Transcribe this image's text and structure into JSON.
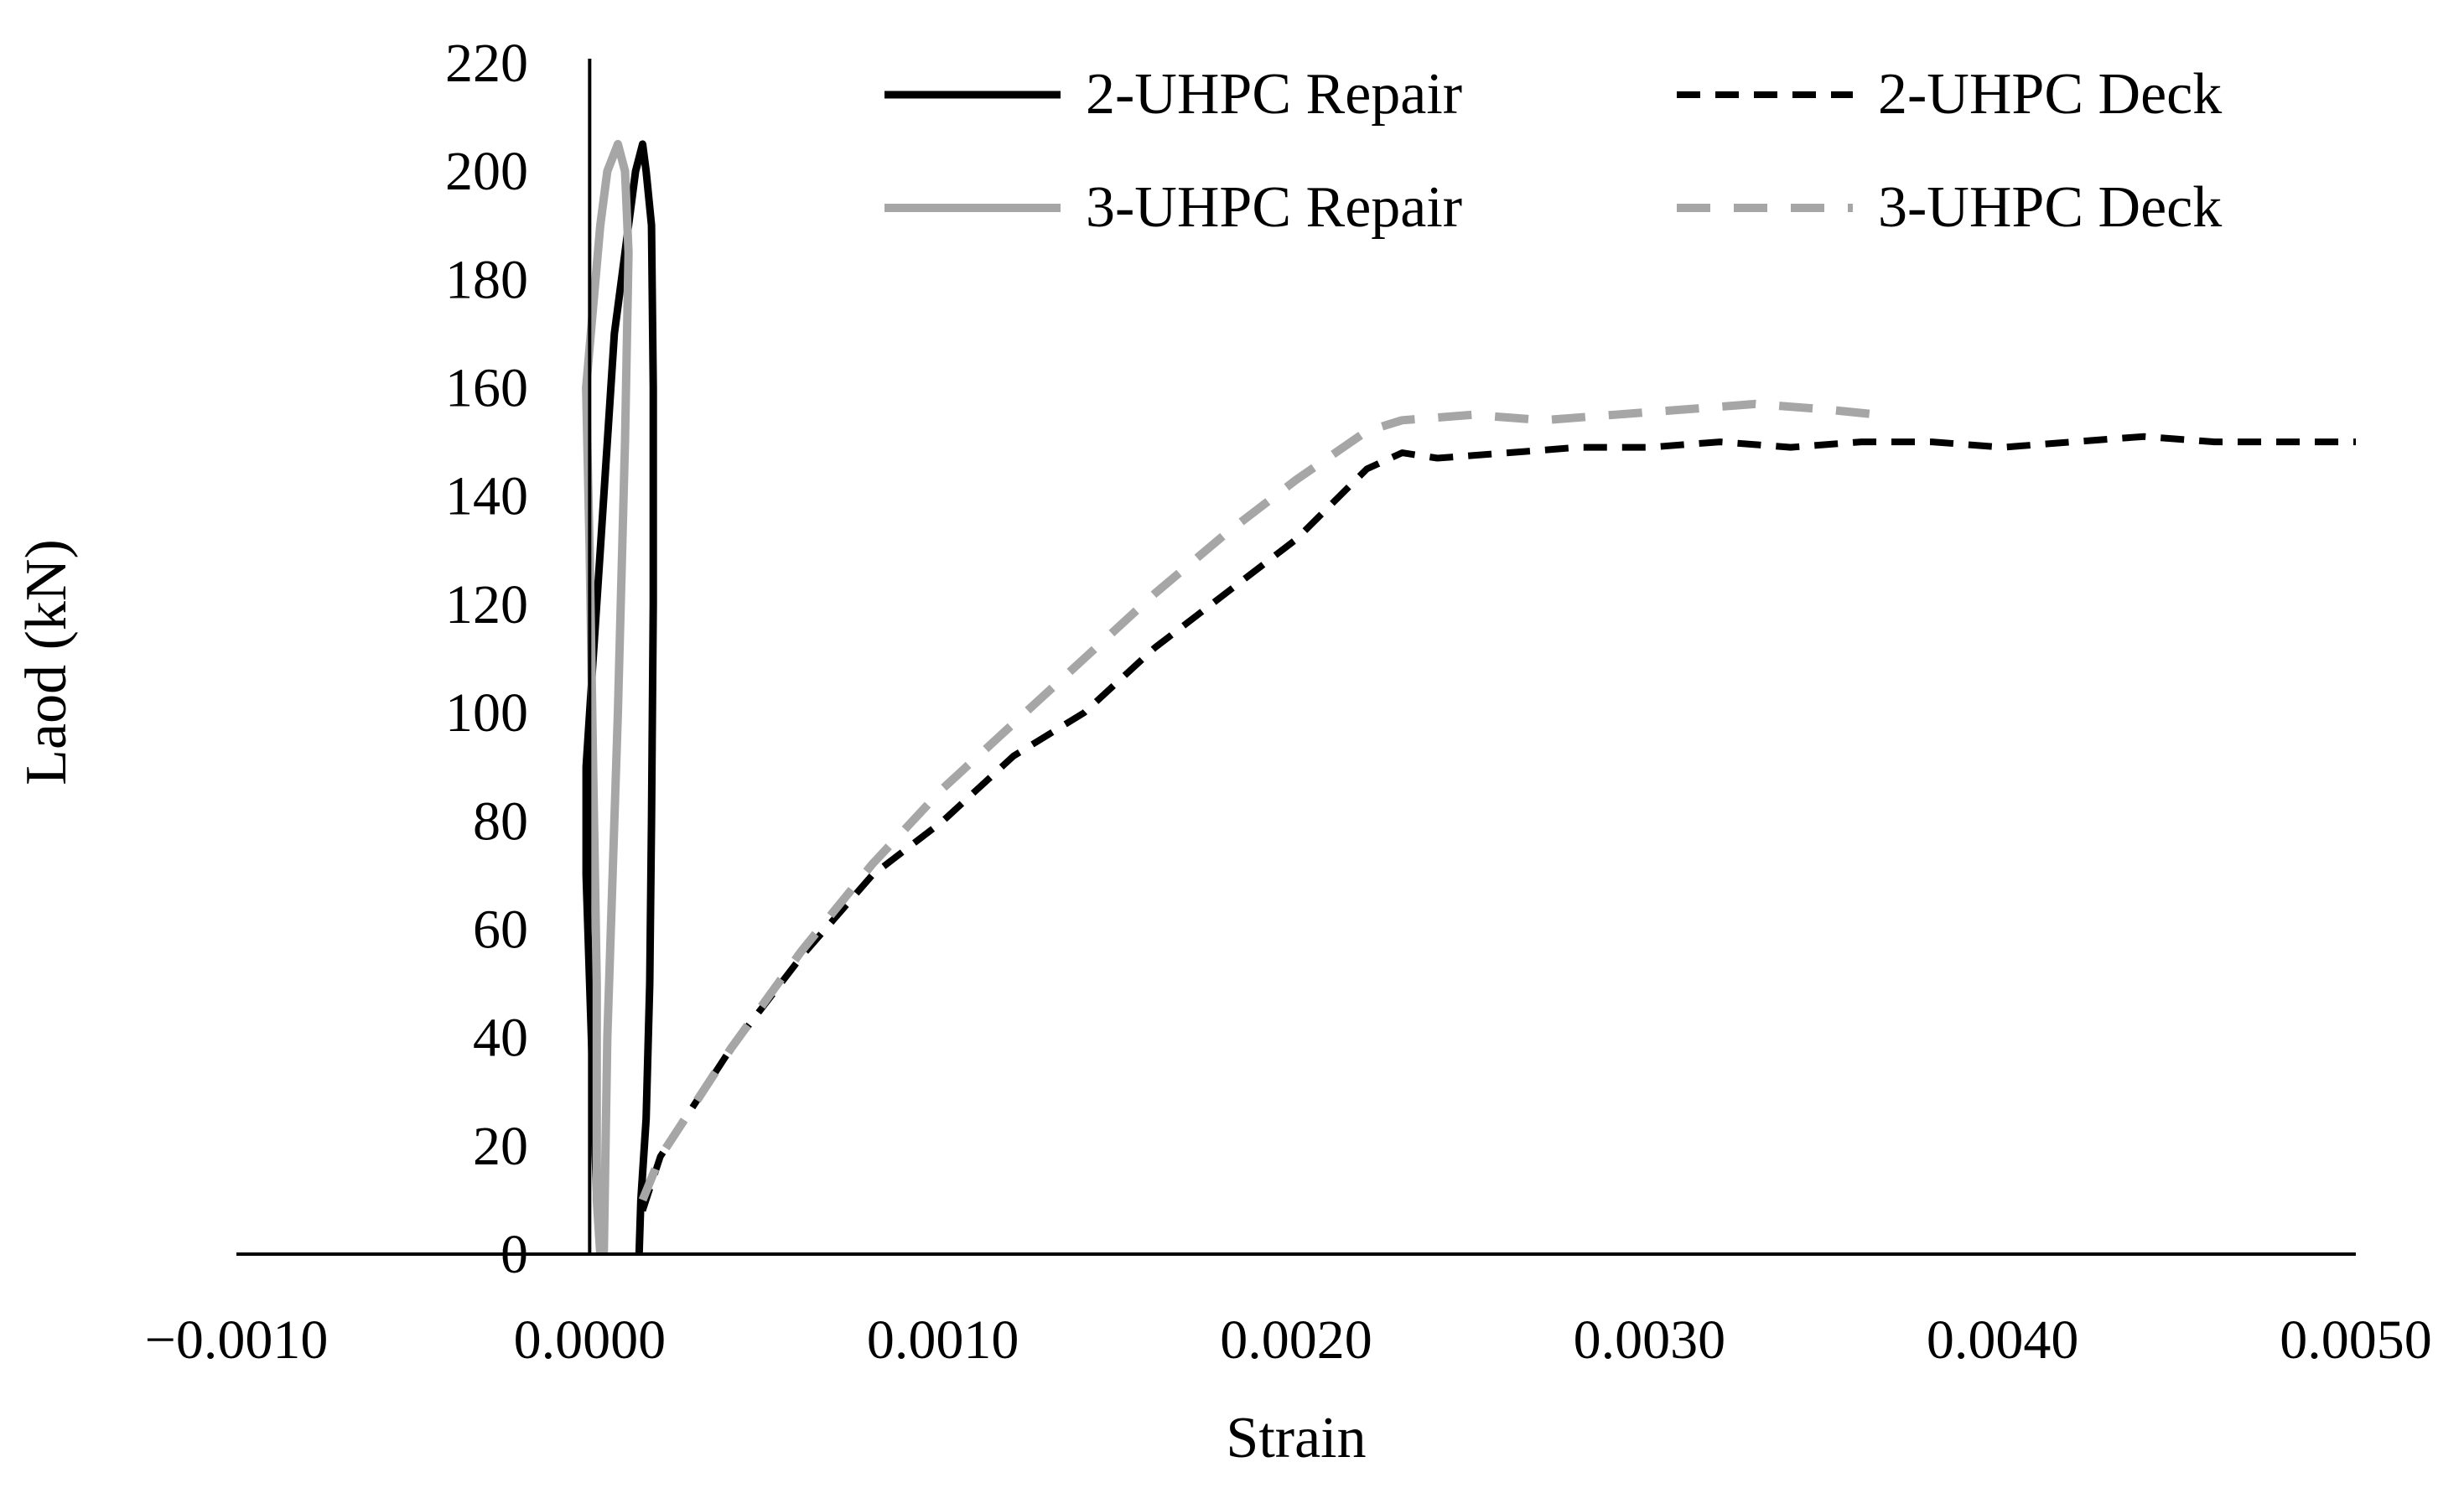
{
  "chart_data": {
    "type": "line",
    "title": "",
    "xlabel": "Strain",
    "ylabel": "Laod (kN)",
    "xlim": [
      -0.001,
      0.005
    ],
    "ylim": [
      0,
      220
    ],
    "x_ticks": [
      "−0.0010",
      "0.0000",
      "0.0010",
      "0.0020",
      "0.0030",
      "0.0040",
      "0.0050"
    ],
    "y_ticks": [
      "0",
      "20",
      "40",
      "60",
      "80",
      "100",
      "120",
      "140",
      "160",
      "180",
      "200",
      "220"
    ],
    "grid": false,
    "legend_position": "top-right",
    "series": [
      {
        "name": "2-UHPC Repair",
        "color": "#000000",
        "dash": "solid",
        "points": [
          [
            0.00014,
            0
          ],
          [
            0.000145,
            10
          ],
          [
            0.00016,
            25
          ],
          [
            0.00017,
            50
          ],
          [
            0.000175,
            80
          ],
          [
            0.00018,
            120
          ],
          [
            0.00018,
            160
          ],
          [
            0.000175,
            190
          ],
          [
            0.00016,
            200
          ],
          [
            0.00015,
            205
          ],
          [
            0.00013,
            200
          ],
          [
            0.00011,
            190
          ],
          [
            9e-05,
            180
          ],
          [
            7e-05,
            170
          ],
          [
            5e-05,
            150
          ],
          [
            3e-05,
            130
          ],
          [
            1e-05,
            110
          ],
          [
            -1e-05,
            90
          ],
          [
            -1e-05,
            70
          ],
          [
            0.0,
            50
          ],
          [
            1e-05,
            30
          ],
          [
            2e-05,
            10
          ],
          [
            3e-05,
            0
          ]
        ]
      },
      {
        "name": "2-UHPC Deck",
        "color": "#000000",
        "dash": "dashed",
        "points": [
          [
            0.00015,
            8
          ],
          [
            0.0002,
            18
          ],
          [
            0.0004,
            38
          ],
          [
            0.0006,
            55
          ],
          [
            0.0008,
            70
          ],
          [
            0.001,
            80
          ],
          [
            0.0012,
            92
          ],
          [
            0.0014,
            100
          ],
          [
            0.0016,
            112
          ],
          [
            0.0018,
            122
          ],
          [
            0.002,
            132
          ],
          [
            0.0022,
            145
          ],
          [
            0.0023,
            148
          ],
          [
            0.0024,
            147
          ],
          [
            0.0026,
            148
          ],
          [
            0.0028,
            149
          ],
          [
            0.003,
            149
          ],
          [
            0.0032,
            150
          ],
          [
            0.0034,
            149
          ],
          [
            0.0036,
            150
          ],
          [
            0.0038,
            150
          ],
          [
            0.004,
            149
          ],
          [
            0.0042,
            150
          ],
          [
            0.0044,
            151
          ],
          [
            0.0046,
            150
          ],
          [
            0.0048,
            150
          ],
          [
            0.005,
            150
          ]
        ]
      },
      {
        "name": "3-UHPC Repair",
        "color": "#a6a6a6",
        "dash": "solid",
        "points": [
          [
            4e-05,
            0
          ],
          [
            5e-05,
            40
          ],
          [
            8e-05,
            100
          ],
          [
            0.0001,
            150
          ],
          [
            0.00011,
            185
          ],
          [
            0.0001,
            200
          ],
          [
            8e-05,
            205
          ],
          [
            5e-05,
            200
          ],
          [
            3e-05,
            190
          ],
          [
            1e-05,
            175
          ],
          [
            -1e-05,
            160
          ],
          [
            0.0,
            130
          ],
          [
            1e-05,
            90
          ],
          [
            2e-05,
            50
          ],
          [
            2e-05,
            10
          ],
          [
            3e-05,
            0
          ]
        ]
      },
      {
        "name": "3-UHPC Deck",
        "color": "#a6a6a6",
        "dash": "dashed",
        "points": [
          [
            0.00015,
            10
          ],
          [
            0.0002,
            18
          ],
          [
            0.0004,
            38
          ],
          [
            0.0006,
            56
          ],
          [
            0.0008,
            72
          ],
          [
            0.001,
            86
          ],
          [
            0.0012,
            98
          ],
          [
            0.0014,
            110
          ],
          [
            0.0016,
            122
          ],
          [
            0.0018,
            133
          ],
          [
            0.002,
            143
          ],
          [
            0.0022,
            152
          ],
          [
            0.0023,
            154
          ],
          [
            0.0025,
            155
          ],
          [
            0.0027,
            154
          ],
          [
            0.0029,
            155
          ],
          [
            0.0031,
            156
          ],
          [
            0.0033,
            157
          ],
          [
            0.0035,
            156
          ],
          [
            0.00365,
            155
          ]
        ]
      }
    ]
  }
}
